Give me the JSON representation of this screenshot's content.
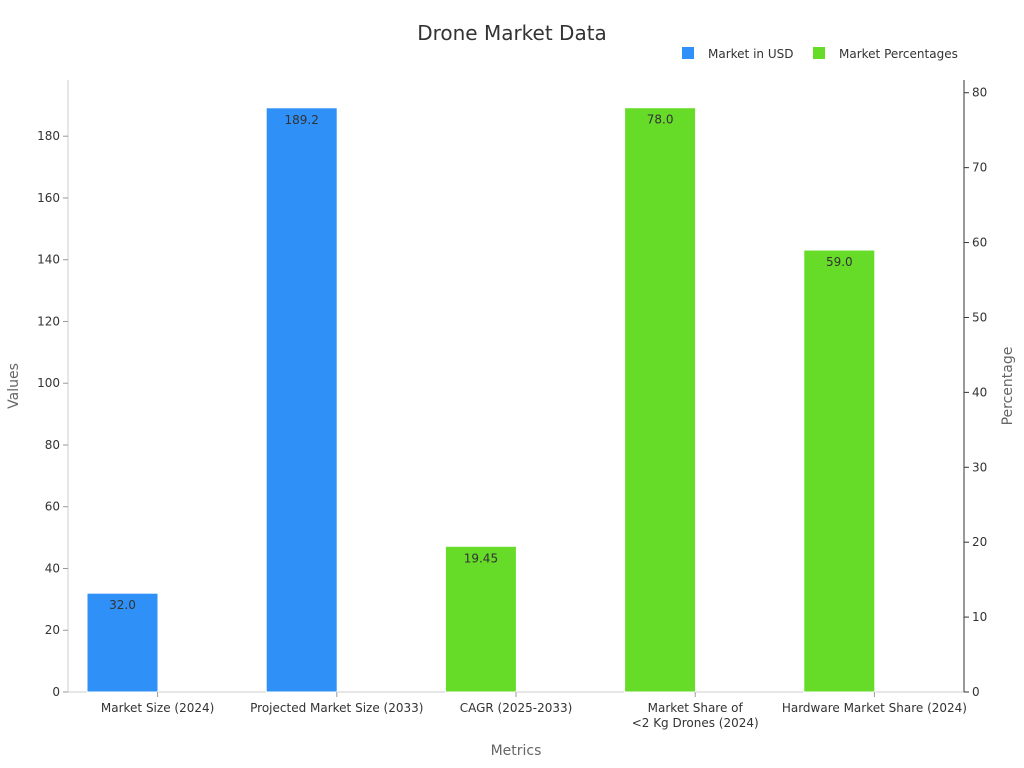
{
  "chart_data": {
    "type": "bar",
    "title": "Drone Market Data",
    "xlabel": "Metrics",
    "ylabel": "Values",
    "y2label": "Percentage",
    "categories": [
      "Market Size (2024)",
      "Projected Market Size (2033)",
      "CAGR (2025-2033)",
      "Market Share of\n<2 Kg Drones (2024)",
      "Hardware Market Share (2024)"
    ],
    "ylim": [
      0,
      198.2
    ],
    "y2lim": [
      0,
      81.7
    ],
    "yticks": [
      0,
      20,
      40,
      60,
      80,
      100,
      120,
      140,
      160,
      180
    ],
    "y2ticks": [
      0,
      10,
      20,
      30,
      40,
      50,
      60,
      70,
      80
    ],
    "legend_position": "top-right",
    "series": [
      {
        "name": "Market in USD",
        "axis": "left",
        "color": "#2f90f7",
        "values": [
          32.0,
          189.2,
          null,
          null,
          null
        ],
        "labels": [
          "32.0",
          "189.2",
          null,
          null,
          null
        ]
      },
      {
        "name": "Market Percentages",
        "axis": "right",
        "color": "#66db28",
        "values": [
          null,
          null,
          19.45,
          78.0,
          59.0
        ],
        "labels": [
          null,
          null,
          "19.45",
          "78.0",
          "59.0"
        ]
      }
    ]
  }
}
